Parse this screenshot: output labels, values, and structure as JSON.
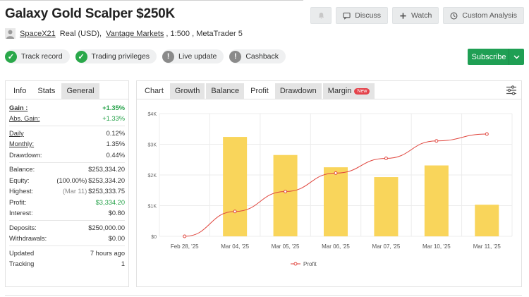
{
  "header": {
    "title": "Galaxy Gold Scalper $250K"
  },
  "actions": {
    "discuss": "Discuss",
    "watch": "Watch",
    "custom_analysis": "Custom Analysis"
  },
  "meta": {
    "user": "SpaceX21",
    "account": "Real (USD),",
    "broker": "Vantage Markets",
    "details": ", 1:500 , MetaTrader 5"
  },
  "checks": [
    {
      "label": "Track record",
      "status": "ok"
    },
    {
      "label": "Trading privileges",
      "status": "ok"
    },
    {
      "label": "Live update",
      "status": "warn"
    },
    {
      "label": "Cashback",
      "status": "warn"
    }
  ],
  "subscribe": {
    "label": "Subscribe"
  },
  "left_tabs": [
    "Info",
    "Stats",
    "General"
  ],
  "stats": {
    "gain": {
      "k": "Gain :",
      "v": "+1.35%"
    },
    "abs_gain": {
      "k": "Abs. Gain:",
      "v": "+1.33%"
    },
    "daily": {
      "k": "Daily",
      "v": "0.12%"
    },
    "monthly": {
      "k": "Monthly:",
      "v": "1.35%"
    },
    "drawdown": {
      "k": "Drawdown:",
      "v": "0.44%"
    },
    "balance": {
      "k": "Balance:",
      "v": "$253,334.20"
    },
    "equity": {
      "k": "Equity:",
      "pre": "(100.00%)",
      "v": "$253,334.20"
    },
    "highest": {
      "k": "Highest:",
      "pre": "(Mar 11)",
      "v": "$253,333.75"
    },
    "profit": {
      "k": "Profit:",
      "v": "$3,334.20"
    },
    "interest": {
      "k": "Interest:",
      "v": "$0.80"
    },
    "deposits": {
      "k": "Deposits:",
      "v": "$250,000.00"
    },
    "withdrawals": {
      "k": "Withdrawals:",
      "v": "$0.00"
    },
    "updated": {
      "k": "Updated",
      "v": "7 hours ago"
    },
    "tracking": {
      "k": "Tracking",
      "v": "1"
    }
  },
  "right_tabs": {
    "chart": "Chart",
    "growth": "Growth",
    "balance": "Balance",
    "profit": "Profit",
    "drawdown": "Drawdown",
    "margin": "Margin",
    "new_badge": "New"
  },
  "colors": {
    "bar": "#f9d55b",
    "line": "#e0463e",
    "accent_green": "#1f9f54"
  },
  "chart_data": {
    "type": "bar",
    "categories": [
      "Feb 28, '25",
      "Mar 04, '25",
      "Mar 05, '25",
      "Mar 06, '25",
      "Mar 07, '25",
      "Mar 10, '25",
      "Mar 11, '25"
    ],
    "y_ticks": [
      "$0",
      "$1K",
      "$2K",
      "$3K",
      "$4K"
    ],
    "ylim": [
      0,
      4000
    ],
    "bars": [
      0,
      3240,
      2650,
      2250,
      1930,
      2310,
      1030
    ],
    "series": [
      {
        "name": "Profit",
        "type": "line",
        "values": [
          0,
          810,
          1460,
          2060,
          2540,
          3110,
          3334
        ]
      }
    ],
    "legend": "bottom",
    "grid": true
  }
}
